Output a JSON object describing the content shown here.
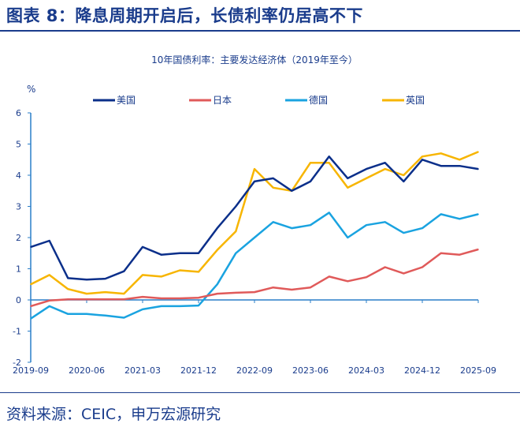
{
  "header": {
    "title": "图表 8：降息周期开启后，长债利率仍居高不下"
  },
  "footer": {
    "source": "资料来源：CEIC，申万宏源研究"
  },
  "chart_data": {
    "type": "line",
    "title": "10年国债利率：主要发达经济体（2019年至今）",
    "ylabel": "%",
    "ylim": [
      -2,
      6
    ],
    "yticks": [
      "6",
      "5",
      "4",
      "3",
      "2",
      "1",
      "0",
      "-1",
      "-2"
    ],
    "xticks": [
      "2019-09",
      "2020-06",
      "2021-03",
      "2021-12",
      "2022-09",
      "2023-06",
      "2024-03",
      "2024-12",
      "2025-09"
    ],
    "legend_position": "top",
    "x": [
      "2019-09",
      "2019-12",
      "2020-03",
      "2020-06",
      "2020-09",
      "2020-12",
      "2021-03",
      "2021-06",
      "2021-09",
      "2021-12",
      "2022-03",
      "2022-06",
      "2022-09",
      "2022-12",
      "2023-03",
      "2023-06",
      "2023-09",
      "2023-12",
      "2024-03",
      "2024-06",
      "2024-09",
      "2024-12",
      "2025-03",
      "2025-06",
      "2025-09"
    ],
    "series": [
      {
        "name": "美国",
        "color": "#0b2f8a",
        "values": [
          1.7,
          1.9,
          0.7,
          0.65,
          0.68,
          0.92,
          1.7,
          1.45,
          1.5,
          1.5,
          2.3,
          3.0,
          3.8,
          3.9,
          3.5,
          3.8,
          4.6,
          3.9,
          4.2,
          4.4,
          3.8,
          4.5,
          4.3,
          4.3,
          4.2
        ]
      },
      {
        "name": "日本",
        "color": "#e05a5a",
        "values": [
          -0.2,
          -0.02,
          0.02,
          0.02,
          0.02,
          0.02,
          0.1,
          0.05,
          0.05,
          0.07,
          0.2,
          0.23,
          0.25,
          0.4,
          0.33,
          0.4,
          0.75,
          0.6,
          0.73,
          1.05,
          0.85,
          1.05,
          1.5,
          1.45,
          1.62
        ]
      },
      {
        "name": "德国",
        "color": "#1aa3e0",
        "values": [
          -0.6,
          -0.2,
          -0.45,
          -0.45,
          -0.5,
          -0.57,
          -0.3,
          -0.2,
          -0.2,
          -0.18,
          0.5,
          1.5,
          2.0,
          2.5,
          2.3,
          2.4,
          2.8,
          2.0,
          2.4,
          2.5,
          2.15,
          2.3,
          2.75,
          2.6,
          2.75
        ]
      },
      {
        "name": "英国",
        "color": "#f7b500",
        "values": [
          0.5,
          0.8,
          0.35,
          0.2,
          0.25,
          0.2,
          0.8,
          0.75,
          0.95,
          0.9,
          1.6,
          2.2,
          4.2,
          3.6,
          3.5,
          4.4,
          4.4,
          3.6,
          3.9,
          4.2,
          4.0,
          4.6,
          4.7,
          4.5,
          4.75
        ]
      }
    ]
  }
}
